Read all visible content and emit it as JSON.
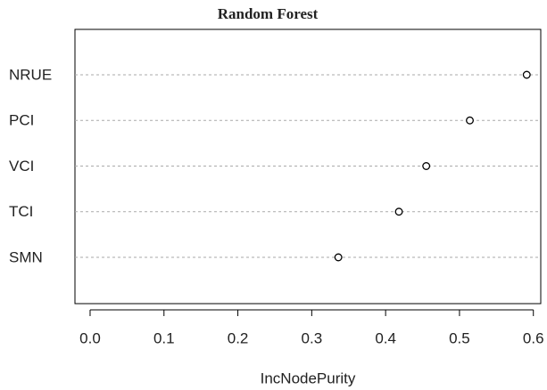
{
  "chart_data": {
    "type": "dot",
    "title": "Random Forest",
    "x_label": "IncNodePurity",
    "categories": [
      "NRUE",
      "PCI",
      "VCI",
      "TCI",
      "SMN"
    ],
    "values": [
      0.591,
      0.514,
      0.455,
      0.418,
      0.336
    ],
    "color": "#000000",
    "xlim": [
      -0.0205,
      0.61
    ],
    "xticks": [
      {
        "value": 0,
        "label": "0.0"
      },
      0.1,
      0.2,
      0.3,
      0.4,
      0.5,
      0.6
    ],
    "grid": true
  }
}
